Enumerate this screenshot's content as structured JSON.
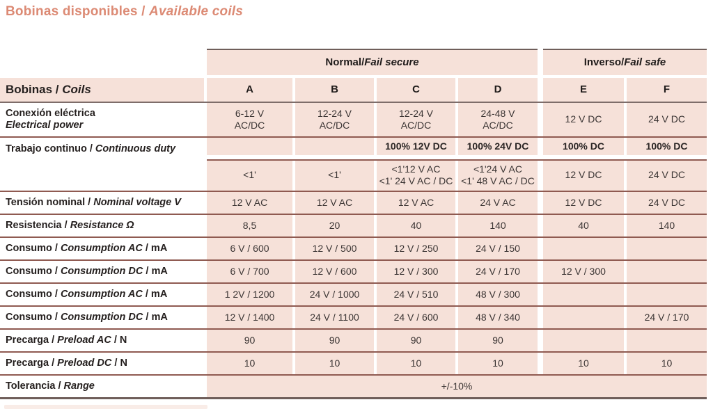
{
  "title": {
    "es": "Bobinas disponibles",
    "sep": " / ",
    "en": "Available coils"
  },
  "colors": {
    "accent": "#dc8a74",
    "cell_bg": "#f6e1d9",
    "thin_line": "#8f5a51",
    "thick_line": "#6f5e5a"
  },
  "table": {
    "group_normal": {
      "es": "Normal",
      "sep": " / ",
      "en": "Fail secure"
    },
    "group_inverso": {
      "es": "Inverso",
      "sep": " / ",
      "en": "Fail safe"
    },
    "corner": {
      "es": "Bobinas",
      "sep": " / ",
      "en": "Coils"
    },
    "columns": [
      "A",
      "B",
      "C",
      "D",
      "E",
      "F"
    ],
    "rows": {
      "conexion": {
        "label_es": "Conexión eléctrica",
        "label_en": "Electrical power",
        "cells": [
          "6-12 V\nAC/DC",
          "12-24 V\nAC/DC",
          "12-24 V\nAC/DC",
          "24-48 V\nAC/DC",
          "12 V DC",
          "24 V DC"
        ]
      },
      "trabajo": {
        "label": {
          "es": "Trabajo continuo",
          "sep": " / ",
          "en": "Continuous duty"
        },
        "sub1": [
          "",
          "",
          "100% 12V DC",
          "100% 24V DC",
          "100% DC",
          "100% DC"
        ],
        "sub2": [
          "<1'",
          "<1'",
          "<1'12 V AC\n<1' 24 V AC / DC",
          "<1'24 V AC\n<1' 48 V AC / DC",
          "12 V DC",
          "24 V DC"
        ]
      },
      "tension": {
        "label": {
          "es": "Tensión nominal",
          "sep": " / ",
          "en": "Nominal voltage V"
        },
        "cells": [
          "12 V AC",
          "12 V AC",
          "12 V AC",
          "24 V AC",
          "12 V DC",
          "24 V DC"
        ]
      },
      "resistencia": {
        "label": {
          "es": "Resistencia",
          "sep": " / ",
          "en": "Resistance Ω"
        },
        "cells": [
          "8,5",
          "20",
          "40",
          "140",
          "40",
          "140"
        ]
      },
      "consumo_ac_1": {
        "label": {
          "es": "Consumo",
          "sep": " / ",
          "en": "Consumption AC",
          "sep2": " / ",
          "unit": "mA"
        },
        "cells": [
          "6 V / 600",
          "12 V / 500",
          "12 V / 250",
          "24 V / 150",
          "",
          ""
        ]
      },
      "consumo_dc_1": {
        "label": {
          "es": "Consumo",
          "sep": " / ",
          "en": "Consumption DC",
          "sep2": " / ",
          "unit": "mA"
        },
        "cells": [
          "6 V / 700",
          "12 V / 600",
          "12 V / 300",
          "24 V / 170",
          "12 V / 300",
          ""
        ]
      },
      "consumo_ac_2": {
        "label": {
          "es": "Consumo",
          "sep": " / ",
          "en": "Consumption AC",
          "sep2": " / ",
          "unit": "mA"
        },
        "cells": [
          "1 2V / 1200",
          "24 V / 1000",
          "24 V / 510",
          "48 V / 300",
          "",
          ""
        ]
      },
      "consumo_dc_2": {
        "label": {
          "es": "Consumo",
          "sep": " / ",
          "en": "Consumption DC",
          "sep2": " / ",
          "unit": "mA"
        },
        "cells": [
          "12 V / 1400",
          "24 V / 1100",
          "24 V / 600",
          "48 V / 340",
          "",
          "24 V / 170"
        ]
      },
      "precarga_ac": {
        "label": {
          "es": "Precarga",
          "sep": " / ",
          "en": "Preload AC",
          "sep2": " / ",
          "unit": "N"
        },
        "cells": [
          "90",
          "90",
          "90",
          "90",
          "",
          ""
        ]
      },
      "precarga_dc": {
        "label": {
          "es": "Precarga",
          "sep": " / ",
          "en": "Preload DC",
          "sep2": " / ",
          "unit": "N"
        },
        "cells": [
          "10",
          "10",
          "10",
          "10",
          "10",
          "10"
        ]
      },
      "tolerancia": {
        "label": {
          "es": "Tolerancia",
          "sep": " / ",
          "en": "Range"
        },
        "value": "+/-10%"
      }
    }
  }
}
